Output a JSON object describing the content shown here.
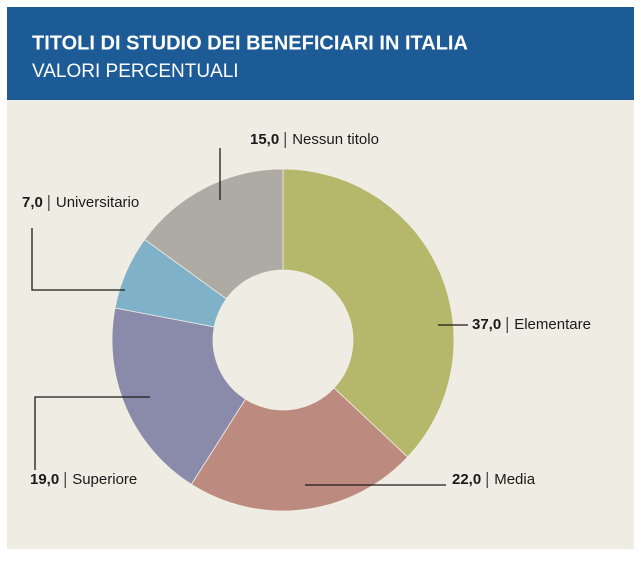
{
  "chart_data": {
    "type": "donut",
    "title": "TITOLI DI STUDIO DEI BENEFICIARI IN ITALIA",
    "subtitle": "VALORI PERCENTUALI",
    "categories": [
      "Elementare",
      "Media",
      "Superiore",
      "Universitario",
      "Nessun titolo"
    ],
    "values": [
      37,
      22,
      19,
      7,
      15
    ],
    "value_labels": [
      "37,0",
      "22,0",
      "19,0",
      "7,0",
      "15,0"
    ],
    "colors": [
      "#b5b76b",
      "#bd8a7f",
      "#8a8aab",
      "#7fb1c9",
      "#aeaaa4"
    ]
  }
}
